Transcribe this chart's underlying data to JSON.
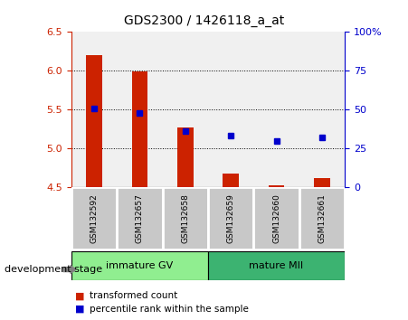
{
  "title": "GDS2300 / 1426118_a_at",
  "samples": [
    "GSM132592",
    "GSM132657",
    "GSM132658",
    "GSM132659",
    "GSM132660",
    "GSM132661"
  ],
  "red_values": [
    6.2,
    5.99,
    5.27,
    4.68,
    4.53,
    4.62
  ],
  "percentiles": [
    51,
    48,
    36,
    33,
    30,
    32
  ],
  "red_base": 4.5,
  "ylim": [
    4.5,
    6.5
  ],
  "yticks": [
    4.5,
    5.0,
    5.5,
    6.0,
    6.5
  ],
  "y2ticks": [
    0,
    25,
    50,
    75,
    100
  ],
  "y2labels": [
    "0",
    "25",
    "50",
    "75",
    "100%"
  ],
  "grid_lines": [
    5.0,
    5.5,
    6.0
  ],
  "groups": [
    {
      "label": "immature GV",
      "start": 0,
      "end": 3,
      "color": "#90ee90"
    },
    {
      "label": "mature MII",
      "start": 3,
      "end": 6,
      "color": "#3cb371"
    }
  ],
  "group_label": "development stage",
  "legend_red": "transformed count",
  "legend_blue": "percentile rank within the sample",
  "bar_color": "#cc2200",
  "dot_color": "#0000cc",
  "tick_color_left": "#cc2200",
  "tick_color_right": "#0000cc",
  "bar_width": 0.35,
  "background_plot": "#f0f0f0",
  "background_sample": "#c8c8c8",
  "fig_width": 4.51,
  "fig_height": 3.54,
  "dpi": 100
}
